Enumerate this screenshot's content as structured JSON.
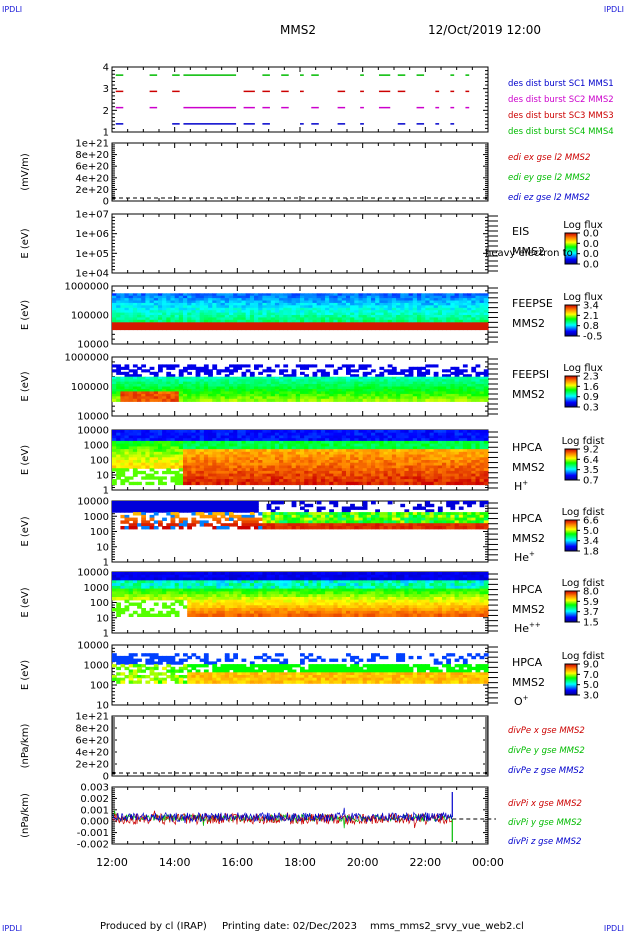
{
  "header": {
    "mission": "MMS2",
    "datetime": "12/Oct/2019 12:00"
  },
  "corners": {
    "tl": "IPDLI",
    "tr": "IPDLI",
    "bl": "IPDLI",
    "br": "IPDLI"
  },
  "footer": {
    "produced": "Produced by cl (IRAP)",
    "printing": "Printing date: 02/Dec/2023",
    "file": "mms_mms2_srvy_vue_web2.cl"
  },
  "colors": {
    "blue": "#0000cc",
    "red": "#cc0000",
    "green": "#00bb00",
    "magenta": "#cc00cc"
  },
  "chart_data": [
    {
      "type": "scatter",
      "ylabel": "",
      "yticks": [
        "4",
        "3",
        "2",
        "1"
      ],
      "ylim": [
        0.5,
        4.5
      ],
      "legend": [
        {
          "label": "des dist burst SC1 MMS1",
          "color": "#0000cc"
        },
        {
          "label": "des dist burst SC2 MMS2",
          "color": "#cc00cc"
        },
        {
          "label": "des dist burst SC3 MMS3",
          "color": "#cc0000"
        },
        {
          "label": "des dist burst SC4 MMS4",
          "color": "#00bb00"
        }
      ]
    },
    {
      "type": "line",
      "ylabel": "(mV/m)",
      "yticks": [
        "1e+21",
        "8e+20",
        "6e+20",
        "4e+20",
        "2e+20",
        "0"
      ],
      "legend": [
        {
          "label": "edi ex gse l2 MMS2",
          "color": "#cc0000"
        },
        {
          "label": "edi ey gse l2 MMS2",
          "color": "#00bb00"
        },
        {
          "label": "edi ez gse l2 MMS2",
          "color": "#0000cc"
        }
      ]
    },
    {
      "type": "heatmap",
      "ylabel": "E (eV)",
      "yticks": [
        "1e+07",
        "1e+06",
        "1e+05",
        "1e+04"
      ],
      "instrument": "EIS",
      "overlay": "heavy electron to",
      "sc": "MMS2",
      "cbar_title": "Log flux",
      "cbar_ticks": [
        "0.0",
        "0.0",
        "0.0",
        "0.0"
      ]
    },
    {
      "type": "heatmap",
      "ylabel": "E (eV)",
      "yticks": [
        "1000000",
        "100000",
        "10000"
      ],
      "instrument": "FEEPSE",
      "sc": "MMS2",
      "cbar_title": "Log flux",
      "cbar_ticks": [
        "3.4",
        "2.1",
        "0.8",
        "-0.5"
      ]
    },
    {
      "type": "heatmap",
      "ylabel": "E (eV)",
      "yticks": [
        "1000000",
        "100000",
        "10000"
      ],
      "instrument": "FEEPSI",
      "sc": "MMS2",
      "cbar_title": "Log flux",
      "cbar_ticks": [
        "2.3",
        "1.6",
        "0.9",
        "0.3"
      ]
    },
    {
      "type": "heatmap",
      "ylabel": "E (eV)",
      "yticks": [
        "10000",
        "1000",
        "100",
        "10",
        "1"
      ],
      "instrument": "HPCA",
      "sc": "MMS2",
      "species": "H",
      "charge": "+",
      "cbar_title": "Log fdist",
      "cbar_ticks": [
        "9.2",
        "6.4",
        "3.5",
        "0.7"
      ]
    },
    {
      "type": "heatmap",
      "ylabel": "E (eV)",
      "yticks": [
        "10000",
        "1000",
        "100",
        "10",
        "1"
      ],
      "instrument": "HPCA",
      "sc": "MMS2",
      "species": "He",
      "charge": "+",
      "cbar_title": "Log fdist",
      "cbar_ticks": [
        "6.6",
        "5.0",
        "3.4",
        "1.8"
      ]
    },
    {
      "type": "heatmap",
      "ylabel": "E (eV)",
      "yticks": [
        "10000",
        "1000",
        "100",
        "10",
        "1"
      ],
      "instrument": "HPCA",
      "sc": "MMS2",
      "species": "He",
      "charge": "++",
      "cbar_title": "Log fdist",
      "cbar_ticks": [
        "8.0",
        "5.9",
        "3.7",
        "1.5"
      ]
    },
    {
      "type": "heatmap",
      "ylabel": "E (eV)",
      "yticks": [
        "10000",
        "1000",
        "100",
        "10"
      ],
      "instrument": "HPCA",
      "sc": "MMS2",
      "species": "O",
      "charge": "+",
      "cbar_title": "Log fdist",
      "cbar_ticks": [
        "9.0",
        "7.0",
        "5.0",
        "3.0"
      ]
    },
    {
      "type": "line",
      "ylabel": "(nPa/km)",
      "yticks": [
        "1e+21",
        "8e+20",
        "6e+20",
        "4e+20",
        "2e+20",
        "0"
      ],
      "legend": [
        {
          "label": "divPe x gse MMS2",
          "color": "#cc0000"
        },
        {
          "label": "divPe y gse MMS2",
          "color": "#00bb00"
        },
        {
          "label": "divPe z gse MMS2",
          "color": "#0000cc"
        }
      ]
    },
    {
      "type": "line",
      "ylabel": "(nPa/km)",
      "yticks": [
        "0.003",
        "0.002",
        "0.001",
        "0.000",
        "-0.001",
        "-0.002"
      ],
      "ylim": [
        -0.0025,
        0.0032
      ],
      "legend": [
        {
          "label": "divPi x gse MMS2",
          "color": "#cc0000"
        },
        {
          "label": "divPi y gse MMS2",
          "color": "#00bb00"
        },
        {
          "label": "divPi z gse MMS2",
          "color": "#0000cc"
        }
      ]
    }
  ],
  "xaxis": {
    "ticks": [
      "12:00",
      "14:00",
      "16:00",
      "18:00",
      "20:00",
      "22:00",
      "00:00"
    ]
  }
}
